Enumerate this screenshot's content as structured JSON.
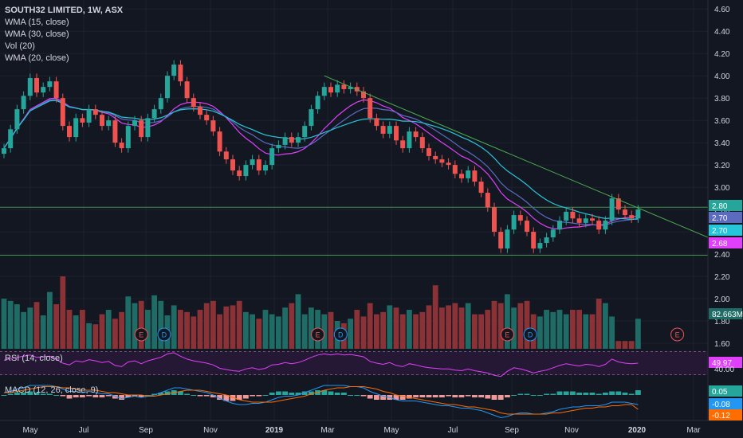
{
  "legend": {
    "symbol": "SOUTH32 LIMITED, 1W, ASX",
    "studies": [
      "WMA (15, close)",
      "WMA (30, close)",
      "Vol (20)",
      "WMA (20, close)"
    ]
  },
  "rsi": {
    "label": "RSI (14, close)",
    "value_tag": "49.97",
    "level_label": "40.00"
  },
  "macd": {
    "label": "MACD (12, 26, close, 9)",
    "histogram_tag": "0.05",
    "macd_tag": "-0.08",
    "signal_tag": "-0.12"
  },
  "colors": {
    "background": "#131722",
    "up": "#26a69a",
    "down": "#ef5350",
    "vol_up": "#1f6b66",
    "vol_down": "#8b3236",
    "wma15": "#e040fb",
    "wma20": "#5c6bc0",
    "wma30": "#26c6da",
    "trendline": "#4caf50",
    "rsi_line": "#e040fb",
    "macd_line": "#2196f3",
    "signal_line": "#ff6d00",
    "text": "#d1d4dc",
    "grid": "#1e222d"
  },
  "chart_data": {
    "type": "candlestick",
    "title": "SOUTH32 LIMITED, 1W, ASX",
    "y_axis": {
      "ticks": [
        "4.60",
        "4.40",
        "4.20",
        "4.00",
        "3.80",
        "3.60",
        "3.40",
        "3.20",
        "3.00",
        "2.80",
        "2.60",
        "2.40",
        "2.20",
        "2.00",
        "1.80",
        "1.60"
      ],
      "range": [
        1.55,
        4.68
      ]
    },
    "x_axis": {
      "ticks": [
        "May",
        "Jul",
        "Sep",
        "Nov",
        "2019",
        "Mar",
        "May",
        "Jul",
        "Sep",
        "Nov",
        "2020",
        "Mar"
      ]
    },
    "price_tags": [
      {
        "value": "2.80",
        "color": "#26a69a"
      },
      {
        "value": "2.70",
        "color": "#5c6bc0"
      },
      {
        "value": "2.70",
        "color": "#26c6da"
      },
      {
        "value": "2.68",
        "color": "#e040fb"
      }
    ],
    "volume_tag": "82.663M",
    "horizontal_levels": [
      2.82,
      2.39
    ],
    "earnings_markers": [
      "E",
      "D",
      "E",
      "D",
      "E",
      "D",
      "E"
    ],
    "closes": [
      3.35,
      3.52,
      3.7,
      3.82,
      3.98,
      3.85,
      3.9,
      3.95,
      3.8,
      3.55,
      3.45,
      3.62,
      3.58,
      3.7,
      3.65,
      3.55,
      3.6,
      3.4,
      3.35,
      3.55,
      3.6,
      3.45,
      3.62,
      3.7,
      3.8,
      4.0,
      4.1,
      3.95,
      3.8,
      3.72,
      3.65,
      3.6,
      3.5,
      3.32,
      3.25,
      3.15,
      3.1,
      3.2,
      3.25,
      3.15,
      3.2,
      3.35,
      3.38,
      3.45,
      3.4,
      3.45,
      3.55,
      3.7,
      3.82,
      3.9,
      3.85,
      3.92,
      3.88,
      3.9,
      3.86,
      3.8,
      3.62,
      3.55,
      3.48,
      3.55,
      3.42,
      3.35,
      3.5,
      3.45,
      3.35,
      3.28,
      3.25,
      3.22,
      3.2,
      3.12,
      3.08,
      3.15,
      3.05,
      2.95,
      2.82,
      2.6,
      2.45,
      2.62,
      2.75,
      2.7,
      2.6,
      2.45,
      2.5,
      2.55,
      2.62,
      2.7,
      2.78,
      2.72,
      2.68,
      2.72,
      2.7,
      2.62,
      2.7,
      2.9,
      2.8,
      2.75,
      2.72,
      2.8
    ],
    "volumes": [
      2.0,
      1.98,
      1.95,
      1.88,
      1.92,
      1.97,
      1.85,
      2.06,
      1.95,
      2.2,
      1.9,
      1.85,
      1.9,
      1.78,
      1.77,
      1.86,
      1.9,
      1.82,
      1.88,
      2.02,
      1.96,
      1.98,
      1.9,
      2.03,
      1.98,
      1.85,
      1.94,
      1.9,
      1.88,
      1.84,
      1.9,
      1.96,
      1.98,
      1.86,
      1.93,
      1.94,
      1.98,
      1.88,
      1.86,
      1.82,
      1.9,
      1.86,
      1.84,
      1.92,
      1.96,
      2.04,
      1.86,
      1.92,
      1.9,
      1.86,
      1.88,
      1.8,
      1.78,
      1.82,
      1.9,
      1.84,
      1.96,
      1.86,
      1.88,
      1.94,
      1.92,
      1.86,
      1.9,
      1.86,
      1.88,
      1.94,
      2.12,
      1.92,
      1.94,
      1.96,
      1.92,
      1.96,
      1.86,
      1.86,
      1.9,
      1.98,
      1.96,
      2.04,
      1.92,
      1.96,
      1.98,
      1.86,
      1.84,
      1.9,
      1.88,
      1.9,
      1.86,
      1.9,
      1.9,
      1.86,
      1.86,
      2.0,
      1.96,
      1.84,
      1.62,
      1.62,
      1.62,
      1.82
    ],
    "rsi_range": [
      28,
      72
    ],
    "rsi_values": [
      55,
      58,
      60,
      62,
      64,
      60,
      61,
      62,
      57,
      50,
      47,
      54,
      52,
      56,
      54,
      51,
      53,
      46,
      44,
      52,
      54,
      49,
      54,
      57,
      60,
      66,
      68,
      62,
      57,
      54,
      52,
      50,
      47,
      41,
      39,
      37,
      36,
      40,
      42,
      39,
      41,
      47,
      48,
      51,
      49,
      51,
      55,
      60,
      64,
      66,
      64,
      66,
      64,
      65,
      63,
      61,
      53,
      50,
      48,
      51,
      46,
      44,
      49,
      47,
      44,
      42,
      41,
      40,
      40,
      38,
      37,
      40,
      37,
      35,
      33,
      29,
      27,
      36,
      42,
      40,
      37,
      33,
      36,
      38,
      42,
      46,
      49,
      47,
      45,
      48,
      47,
      44,
      48,
      57,
      52,
      50,
      49,
      50
    ],
    "macd_range": [
      -0.2,
      0.12
    ],
    "macd_line": [
      0.02,
      0.03,
      0.05,
      0.06,
      0.08,
      0.08,
      0.08,
      0.08,
      0.07,
      0.05,
      0.03,
      0.03,
      0.02,
      0.03,
      0.02,
      0.01,
      0.01,
      -0.01,
      -0.03,
      -0.02,
      -0.01,
      -0.02,
      -0.01,
      0.0,
      0.02,
      0.04,
      0.06,
      0.06,
      0.05,
      0.04,
      0.03,
      0.02,
      0.0,
      -0.03,
      -0.05,
      -0.07,
      -0.08,
      -0.08,
      -0.07,
      -0.07,
      -0.06,
      -0.04,
      -0.02,
      -0.01,
      -0.01,
      0.0,
      0.02,
      0.04,
      0.06,
      0.08,
      0.08,
      0.08,
      0.08,
      0.07,
      0.07,
      0.06,
      0.03,
      0.01,
      -0.01,
      -0.02,
      -0.04,
      -0.05,
      -0.05,
      -0.05,
      -0.06,
      -0.07,
      -0.08,
      -0.09,
      -0.09,
      -0.1,
      -0.11,
      -0.11,
      -0.12,
      -0.13,
      -0.15,
      -0.17,
      -0.19,
      -0.18,
      -0.16,
      -0.15,
      -0.15,
      -0.16,
      -0.16,
      -0.15,
      -0.14,
      -0.12,
      -0.11,
      -0.1,
      -0.1,
      -0.09,
      -0.09,
      -0.09,
      -0.08,
      -0.06,
      -0.06,
      -0.06,
      -0.07,
      -0.08
    ],
    "signal_line": [
      0.02,
      0.02,
      0.03,
      0.04,
      0.05,
      0.06,
      0.07,
      0.07,
      0.07,
      0.06,
      0.06,
      0.05,
      0.04,
      0.04,
      0.04,
      0.03,
      0.02,
      0.02,
      0.01,
      0.0,
      0.0,
      0.0,
      -0.01,
      -0.01,
      0.0,
      0.01,
      0.02,
      0.03,
      0.04,
      0.04,
      0.04,
      0.03,
      0.02,
      0.01,
      0.0,
      -0.02,
      -0.04,
      -0.05,
      -0.06,
      -0.06,
      -0.06,
      -0.06,
      -0.05,
      -0.04,
      -0.03,
      -0.02,
      -0.01,
      0.01,
      0.02,
      0.04,
      0.05,
      0.06,
      0.06,
      0.07,
      0.07,
      0.07,
      0.06,
      0.05,
      0.03,
      0.02,
      0.0,
      -0.01,
      -0.02,
      -0.03,
      -0.04,
      -0.05,
      -0.06,
      -0.07,
      -0.08,
      -0.08,
      -0.09,
      -0.1,
      -0.1,
      -0.11,
      -0.12,
      -0.13,
      -0.15,
      -0.16,
      -0.16,
      -0.16,
      -0.16,
      -0.16,
      -0.16,
      -0.16,
      -0.15,
      -0.15,
      -0.14,
      -0.13,
      -0.12,
      -0.11,
      -0.11,
      -0.1,
      -0.1,
      -0.09,
      -0.09,
      -0.08,
      -0.08,
      -0.12
    ]
  }
}
